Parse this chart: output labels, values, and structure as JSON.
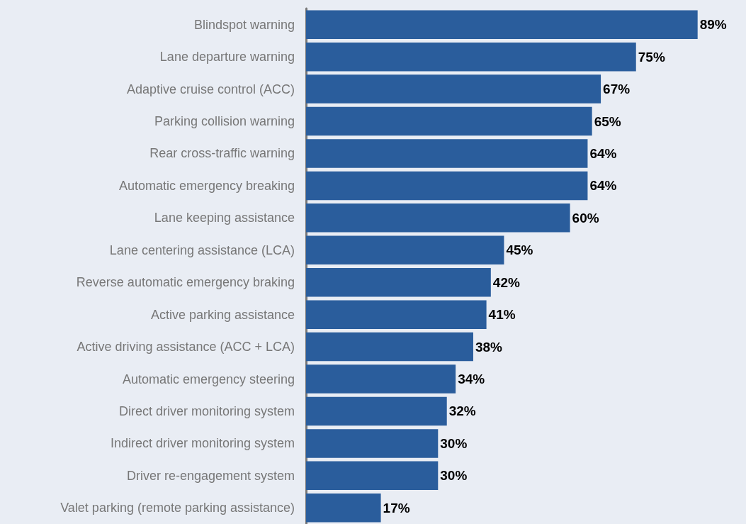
{
  "chart_data": {
    "type": "bar",
    "orientation": "horizontal",
    "categories": [
      "Blindspot warning",
      "Lane departure warning",
      "Adaptive cruise control (ACC)",
      "Parking collision warning",
      "Rear cross-traffic warning",
      "Automatic emergency breaking",
      "Lane keeping assistance",
      "Lane centering assistance (LCA)",
      "Reverse automatic emergency braking",
      "Active parking assistance",
      "Active driving assistance (ACC + LCA)",
      "Automatic emergency steering",
      "Direct driver monitoring system",
      "Indirect driver monitoring system",
      "Driver re-engagement system",
      "Valet parking (remote parking assistance)"
    ],
    "values": [
      89,
      75,
      67,
      65,
      64,
      64,
      60,
      45,
      42,
      41,
      38,
      34,
      32,
      30,
      30,
      17
    ],
    "value_labels": [
      "89%",
      "75%",
      "67%",
      "65%",
      "64%",
      "64%",
      "60%",
      "45%",
      "42%",
      "41%",
      "38%",
      "34%",
      "32%",
      "30%",
      "30%",
      "17%"
    ],
    "color": "#2a5d9c",
    "grid": false
  }
}
